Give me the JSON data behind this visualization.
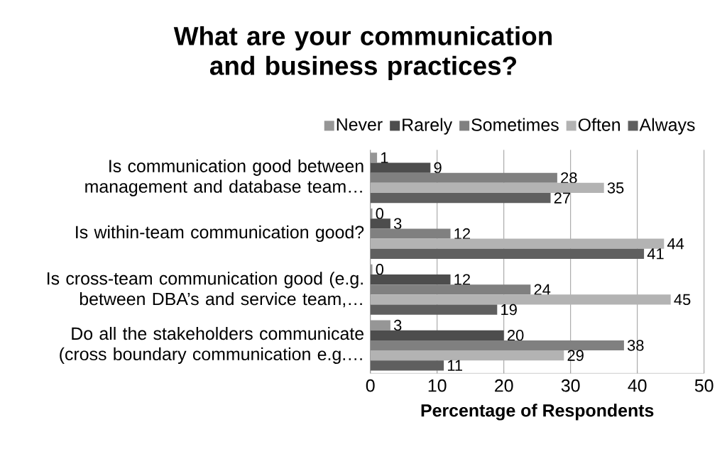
{
  "chart_data": {
    "type": "bar",
    "orientation": "horizontal",
    "title": "What are your communication and business practices?",
    "xlabel": "Percentage of Respondents",
    "categories": [
      "Is communication good between management and database team…",
      "Is within-team communication good?",
      "Is cross-team communication good (e.g. between DBA’s and service team,…",
      "Do all the stakeholders communicate (cross boundary communication e.g.…"
    ],
    "series": [
      {
        "name": "Never",
        "color": "#969696",
        "values": [
          1,
          0.3,
          0.3,
          3
        ],
        "value_labels": [
          "1",
          "0",
          "0",
          "3"
        ]
      },
      {
        "name": "Rarely",
        "color": "#4d4d4d",
        "values": [
          9,
          3,
          12,
          20
        ],
        "value_labels": [
          "9",
          "3",
          "12",
          "20"
        ]
      },
      {
        "name": "Sometimes",
        "color": "#808080",
        "values": [
          28,
          12,
          24,
          38
        ],
        "value_labels": [
          "28",
          "12",
          "24",
          "38"
        ]
      },
      {
        "name": "Often",
        "color": "#b3b3b3",
        "values": [
          35,
          44,
          45,
          29
        ],
        "value_labels": [
          "35",
          "44",
          "45",
          "29"
        ]
      },
      {
        "name": "Always",
        "color": "#5f5f5f",
        "values": [
          27,
          41,
          19,
          11
        ],
        "value_labels": [
          "27",
          "41",
          "19",
          "11"
        ]
      }
    ],
    "xlim": [
      0,
      50
    ],
    "xticks": [
      0,
      10,
      20,
      30,
      40,
      50
    ],
    "grid": "x",
    "legend": "top"
  }
}
